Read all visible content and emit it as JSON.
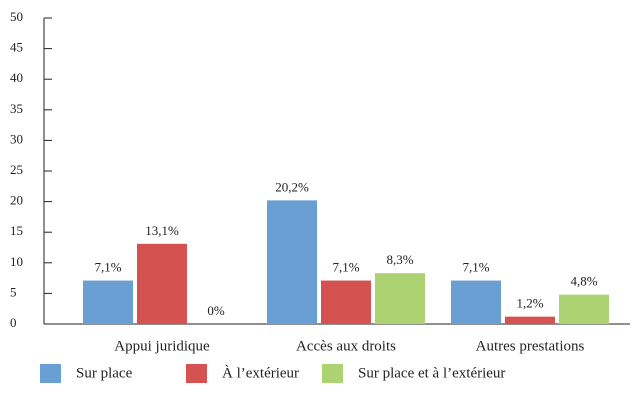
{
  "chart_data": {
    "type": "bar",
    "categories": [
      "Appui juridique",
      "Accès aux droits",
      "Autres prestations"
    ],
    "series": [
      {
        "name": "Sur place",
        "color": "#6a9fd4",
        "values": [
          7.1,
          20.2,
          7.1
        ],
        "value_labels": [
          "7,1%",
          "20,2%",
          "7,1%"
        ]
      },
      {
        "name": "À l’extérieur",
        "color": "#d4524f",
        "values": [
          13.1,
          7.1,
          1.2
        ],
        "value_labels": [
          "13,1%",
          "7,1%",
          "1,2%"
        ]
      },
      {
        "name": "Sur place et à l’extérieur",
        "color": "#acd271",
        "values": [
          0,
          8.3,
          4.8
        ],
        "value_labels": [
          "0%",
          "8,3%",
          "4,8%"
        ]
      }
    ],
    "ylim": [
      0,
      50
    ],
    "yticks": [
      0,
      5,
      10,
      15,
      20,
      25,
      30,
      35,
      40,
      45,
      50
    ],
    "legend": "bottom"
  }
}
